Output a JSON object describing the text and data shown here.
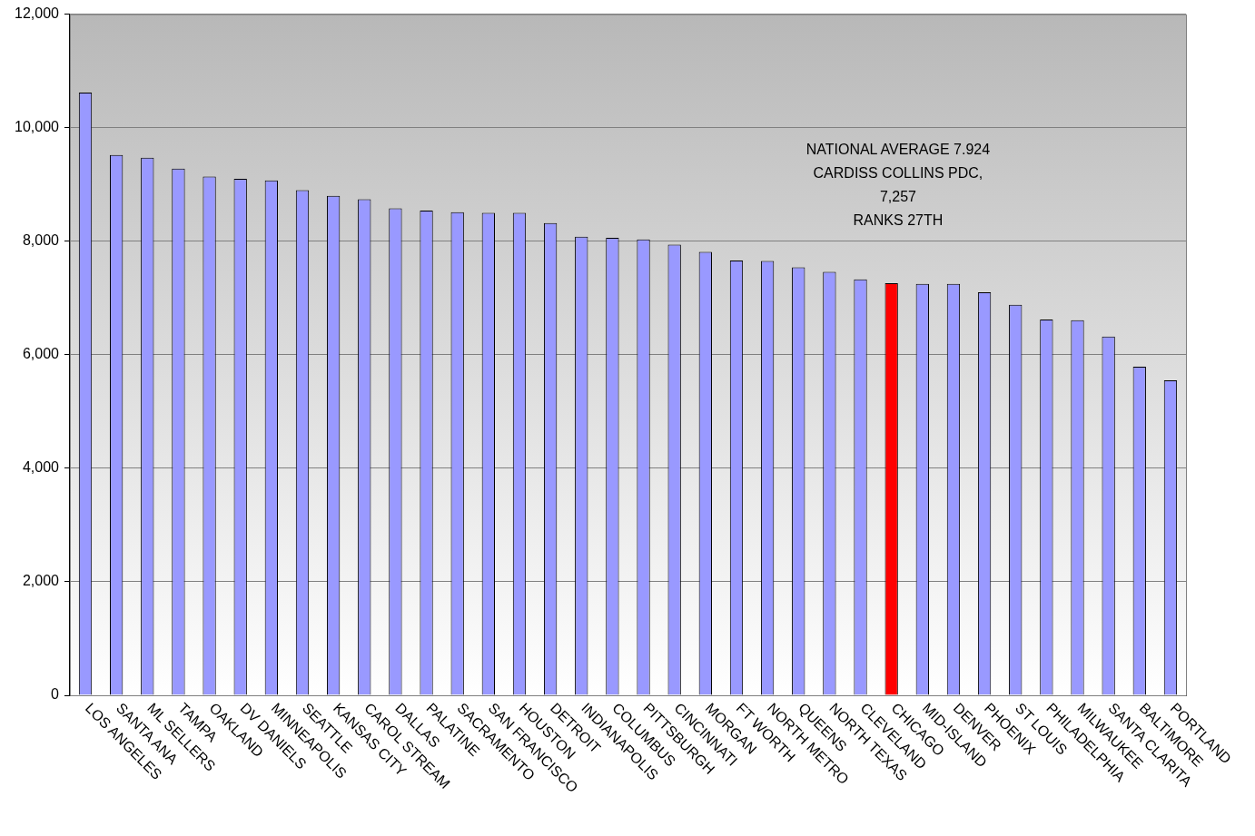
{
  "chart_data": {
    "type": "bar",
    "categories": [
      "LOS ANGELES",
      "SANTA ANA",
      "ML SELLERS",
      "TAMPA",
      "OAKLAND",
      "DV DANIELS",
      "MINNEAPOLIS",
      "SEATTLE",
      "KANSAS CITY",
      "CAROL STREAM",
      "DALLAS",
      "PALATINE",
      "SACRAMENTO",
      "SAN FRANCISCO",
      "HOUSTON",
      "DETROIT",
      "INDIANAPOLIS",
      "COLUMBUS",
      "PITTSBURGH",
      "CINCINNATI",
      "MORGAN",
      "FT WORTH",
      "NORTH METRO",
      "QUEENS",
      "NORTH TEXAS",
      "CLEVELAND",
      "CHICAGO",
      "MID-ISLAND",
      "DENVER",
      "PHOENIX",
      "ST LOUIS",
      "PHILADELPHIA",
      "MILWAUKEE",
      "SANTA CLARITA",
      "BALTIMORE",
      "PORTLAND"
    ],
    "values": [
      10620,
      9520,
      9470,
      9280,
      9140,
      9100,
      9070,
      8900,
      8800,
      8740,
      8580,
      8540,
      8510,
      8500,
      8500,
      8320,
      8080,
      8060,
      8030,
      7940,
      7810,
      7660,
      7650,
      7540,
      7460,
      7330,
      7260,
      7250,
      7250,
      7100,
      6880,
      6620,
      6610,
      6320,
      5790,
      5550
    ],
    "colors": [
      "#9999ff",
      "#9999ff",
      "#9999ff",
      "#9999ff",
      "#9999ff",
      "#9999ff",
      "#9999ff",
      "#9999ff",
      "#9999ff",
      "#9999ff",
      "#9999ff",
      "#9999ff",
      "#9999ff",
      "#9999ff",
      "#9999ff",
      "#9999ff",
      "#9999ff",
      "#9999ff",
      "#9999ff",
      "#9999ff",
      "#9999ff",
      "#9999ff",
      "#9999ff",
      "#9999ff",
      "#9999ff",
      "#9999ff",
      "#ff0000",
      "#9999ff",
      "#9999ff",
      "#9999ff",
      "#9999ff",
      "#9999ff",
      "#9999ff",
      "#9999ff",
      "#9999ff",
      "#9999ff"
    ],
    "ylim": [
      0,
      12000
    ],
    "yticks": [
      0,
      {
        "value": 2000,
        "label": "2,000"
      },
      {
        "value": 4000,
        "label": "4,000"
      },
      {
        "value": 6000,
        "label": "6,000"
      },
      {
        "value": 8000,
        "label": "8,000"
      },
      {
        "value": 10000,
        "label": "10,000"
      },
      {
        "value": 12000,
        "label": "12,000"
      }
    ],
    "grid": "y",
    "legend": false,
    "annotations": [
      "NATIONAL AVERAGE 7.924",
      "CARDISS COLLINS PDC,",
      "7,257",
      "RANKS 27TH"
    ]
  }
}
